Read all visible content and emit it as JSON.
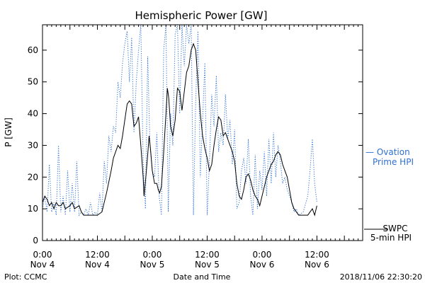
{
  "chart_data": {
    "type": "line",
    "title": "Hemispheric Power [GW]",
    "xlabel": "Date and Time",
    "ylabel": "P [GW]",
    "x_unit": "hours from 2018-11-04 00:00",
    "xlim": [
      0,
      70
    ],
    "ylim": [
      0,
      68
    ],
    "yticks": [
      0,
      10,
      20,
      30,
      40,
      50,
      60
    ],
    "xticks": [
      {
        "x": 0,
        "time": "0:00",
        "date": "Nov 4"
      },
      {
        "x": 12,
        "time": "12:00",
        "date": "Nov 4"
      },
      {
        "x": 24,
        "time": "0:00",
        "date": "Nov 5"
      },
      {
        "x": 36,
        "time": "12:00",
        "date": "Nov 5"
      },
      {
        "x": 48,
        "time": "0:00",
        "date": "Nov 6"
      },
      {
        "x": 60,
        "time": "12:00",
        "date": "Nov 6"
      }
    ],
    "series": [
      {
        "name": "SWPC 5-min HPI",
        "legend_lines": [
          "SWPC",
          "5-min HPI"
        ],
        "color": "#000000",
        "style": "solid",
        "points": [
          [
            0,
            12
          ],
          [
            0.5,
            14
          ],
          [
            1,
            13
          ],
          [
            1.5,
            11
          ],
          [
            2,
            12
          ],
          [
            2.5,
            10
          ],
          [
            3,
            12
          ],
          [
            3.5,
            11
          ],
          [
            4,
            11
          ],
          [
            4.5,
            12
          ],
          [
            5,
            10
          ],
          [
            6,
            11
          ],
          [
            6.5,
            12
          ],
          [
            7,
            10
          ],
          [
            8,
            11
          ],
          [
            8.5,
            9
          ],
          [
            9,
            8
          ],
          [
            11,
            8
          ],
          [
            12,
            8
          ],
          [
            13,
            9
          ],
          [
            14,
            15
          ],
          [
            15,
            22
          ],
          [
            15.5,
            26
          ],
          [
            16,
            28
          ],
          [
            16.5,
            30
          ],
          [
            17,
            29
          ],
          [
            17.5,
            33
          ],
          [
            18,
            38
          ],
          [
            18.5,
            43
          ],
          [
            19,
            44
          ],
          [
            19.5,
            43
          ],
          [
            20,
            36
          ],
          [
            20.5,
            37
          ],
          [
            21,
            39
          ],
          [
            21.5,
            30
          ],
          [
            22,
            20
          ],
          [
            22.2,
            14
          ],
          [
            22.6,
            20
          ],
          [
            23,
            27
          ],
          [
            23.3,
            33
          ],
          [
            23.6,
            29
          ],
          [
            24,
            22
          ],
          [
            24.5,
            18
          ],
          [
            25,
            18
          ],
          [
            25.3,
            16
          ],
          [
            25.6,
            15
          ],
          [
            26,
            17
          ],
          [
            26.5,
            28
          ],
          [
            27,
            40
          ],
          [
            27.3,
            48
          ],
          [
            27.6,
            45
          ],
          [
            28,
            36
          ],
          [
            28.5,
            33
          ],
          [
            29,
            38
          ],
          [
            29.5,
            48
          ],
          [
            30,
            47
          ],
          [
            30.5,
            41
          ],
          [
            31,
            47
          ],
          [
            31.5,
            53
          ],
          [
            32,
            55
          ],
          [
            32.5,
            60
          ],
          [
            33,
            62
          ],
          [
            33.5,
            60
          ],
          [
            34,
            50
          ],
          [
            34.5,
            40
          ],
          [
            35,
            33
          ],
          [
            35.5,
            29
          ],
          [
            36,
            26
          ],
          [
            36.5,
            22
          ],
          [
            37,
            24
          ],
          [
            37.5,
            30
          ],
          [
            38,
            35
          ],
          [
            38.5,
            39
          ],
          [
            39,
            38
          ],
          [
            39.5,
            33
          ],
          [
            40,
            34
          ],
          [
            40.5,
            32
          ],
          [
            41,
            30
          ],
          [
            41.5,
            28
          ],
          [
            42,
            25
          ],
          [
            42.5,
            18
          ],
          [
            43,
            14
          ],
          [
            43.5,
            13
          ],
          [
            44,
            16
          ],
          [
            44.5,
            20
          ],
          [
            45,
            21
          ],
          [
            45.5,
            19
          ],
          [
            46,
            16
          ],
          [
            46.5,
            14
          ],
          [
            47,
            13
          ],
          [
            47.5,
            11
          ],
          [
            48,
            14
          ],
          [
            48.5,
            17
          ],
          [
            49,
            20
          ],
          [
            49.5,
            22
          ],
          [
            50,
            24
          ],
          [
            50.5,
            25
          ],
          [
            51,
            27
          ],
          [
            51.5,
            28
          ],
          [
            52,
            27
          ],
          [
            52.5,
            24
          ],
          [
            53,
            22
          ],
          [
            53.5,
            20
          ],
          [
            54,
            16
          ],
          [
            54.5,
            12
          ],
          [
            55,
            10
          ],
          [
            55.5,
            9
          ],
          [
            56,
            8
          ],
          [
            57,
            8
          ],
          [
            58,
            8
          ],
          [
            58.5,
            9
          ],
          [
            59,
            10
          ],
          [
            59.5,
            8
          ],
          [
            60,
            11
          ]
        ]
      },
      {
        "name": "Ovation Prime HPI",
        "legend_lines": [
          "— Ovation",
          "Prime HPI"
        ],
        "color": "#2e6fd0",
        "style": "dotted",
        "points": [
          [
            0,
            10
          ],
          [
            0.5,
            14
          ],
          [
            1,
            9
          ],
          [
            1.5,
            24
          ],
          [
            2,
            9
          ],
          [
            2.5,
            12
          ],
          [
            3,
            8
          ],
          [
            3.5,
            30
          ],
          [
            4,
            9
          ],
          [
            4.5,
            14
          ],
          [
            5,
            8
          ],
          [
            5.5,
            22
          ],
          [
            6,
            9
          ],
          [
            6.5,
            18
          ],
          [
            7,
            9
          ],
          [
            7.5,
            25
          ],
          [
            8,
            8
          ],
          [
            8.5,
            9
          ],
          [
            9,
            8
          ],
          [
            9.5,
            10
          ],
          [
            10,
            8
          ],
          [
            10.5,
            12
          ],
          [
            11,
            8
          ],
          [
            11.5,
            9
          ],
          [
            12,
            8
          ],
          [
            12.5,
            15
          ],
          [
            13,
            9
          ],
          [
            13.5,
            25
          ],
          [
            14,
            18
          ],
          [
            14.5,
            33
          ],
          [
            15,
            28
          ],
          [
            15.5,
            36
          ],
          [
            16,
            34
          ],
          [
            16.5,
            50
          ],
          [
            17,
            45
          ],
          [
            17.5,
            56
          ],
          [
            18,
            62
          ],
          [
            18.5,
            66
          ],
          [
            19,
            50
          ],
          [
            19.5,
            64
          ],
          [
            20,
            34
          ],
          [
            20.5,
            50
          ],
          [
            21,
            60
          ],
          [
            21.5,
            68
          ],
          [
            22,
            25
          ],
          [
            22.5,
            10
          ],
          [
            23,
            58
          ],
          [
            23.5,
            30
          ],
          [
            24,
            22
          ],
          [
            24.5,
            20
          ],
          [
            25,
            34
          ],
          [
            25.5,
            14
          ],
          [
            26,
            8
          ],
          [
            26.5,
            60
          ],
          [
            27,
            68
          ],
          [
            27.5,
            9
          ],
          [
            28,
            40
          ],
          [
            28.5,
            30
          ],
          [
            29,
            65
          ],
          [
            29.5,
            68
          ],
          [
            30,
            40
          ],
          [
            30.5,
            68
          ],
          [
            31,
            55
          ],
          [
            31.5,
            68
          ],
          [
            32,
            62
          ],
          [
            32.5,
            68
          ],
          [
            33,
            8
          ],
          [
            33.5,
            44
          ],
          [
            34,
            66
          ],
          [
            34.5,
            20
          ],
          [
            35,
            38
          ],
          [
            35.5,
            56
          ],
          [
            36,
            8
          ],
          [
            36.5,
            25
          ],
          [
            37,
            46
          ],
          [
            37.5,
            36
          ],
          [
            38,
            52
          ],
          [
            38.5,
            28
          ],
          [
            39,
            34
          ],
          [
            39.5,
            30
          ],
          [
            40,
            46
          ],
          [
            40.5,
            32
          ],
          [
            41,
            38
          ],
          [
            41.5,
            24
          ],
          [
            42,
            35
          ],
          [
            42.5,
            10
          ],
          [
            43,
            12
          ],
          [
            43.5,
            22
          ],
          [
            44,
            26
          ],
          [
            44.5,
            18
          ],
          [
            45,
            32
          ],
          [
            45.5,
            14
          ],
          [
            46,
            8
          ],
          [
            46.5,
            27
          ],
          [
            47,
            10
          ],
          [
            47.5,
            22
          ],
          [
            48,
            16
          ],
          [
            48.5,
            28
          ],
          [
            49,
            14
          ],
          [
            49.5,
            32
          ],
          [
            50,
            18
          ],
          [
            50.5,
            34
          ],
          [
            51,
            20
          ],
          [
            51.5,
            30
          ],
          [
            52,
            25
          ],
          [
            52.5,
            18
          ],
          [
            53,
            20
          ],
          [
            53.5,
            16
          ],
          [
            54,
            14
          ],
          [
            54.5,
            12
          ],
          [
            55,
            9
          ],
          [
            55.5,
            10
          ],
          [
            56,
            8
          ],
          [
            57,
            9
          ],
          [
            58,
            14
          ],
          [
            58.5,
            22
          ],
          [
            59,
            32
          ],
          [
            59.5,
            18
          ],
          [
            60,
            12
          ]
        ]
      }
    ]
  },
  "footer": {
    "plot_credit": "Plot: CCMC",
    "timestamp": "2018/11/06 22:30:20"
  }
}
